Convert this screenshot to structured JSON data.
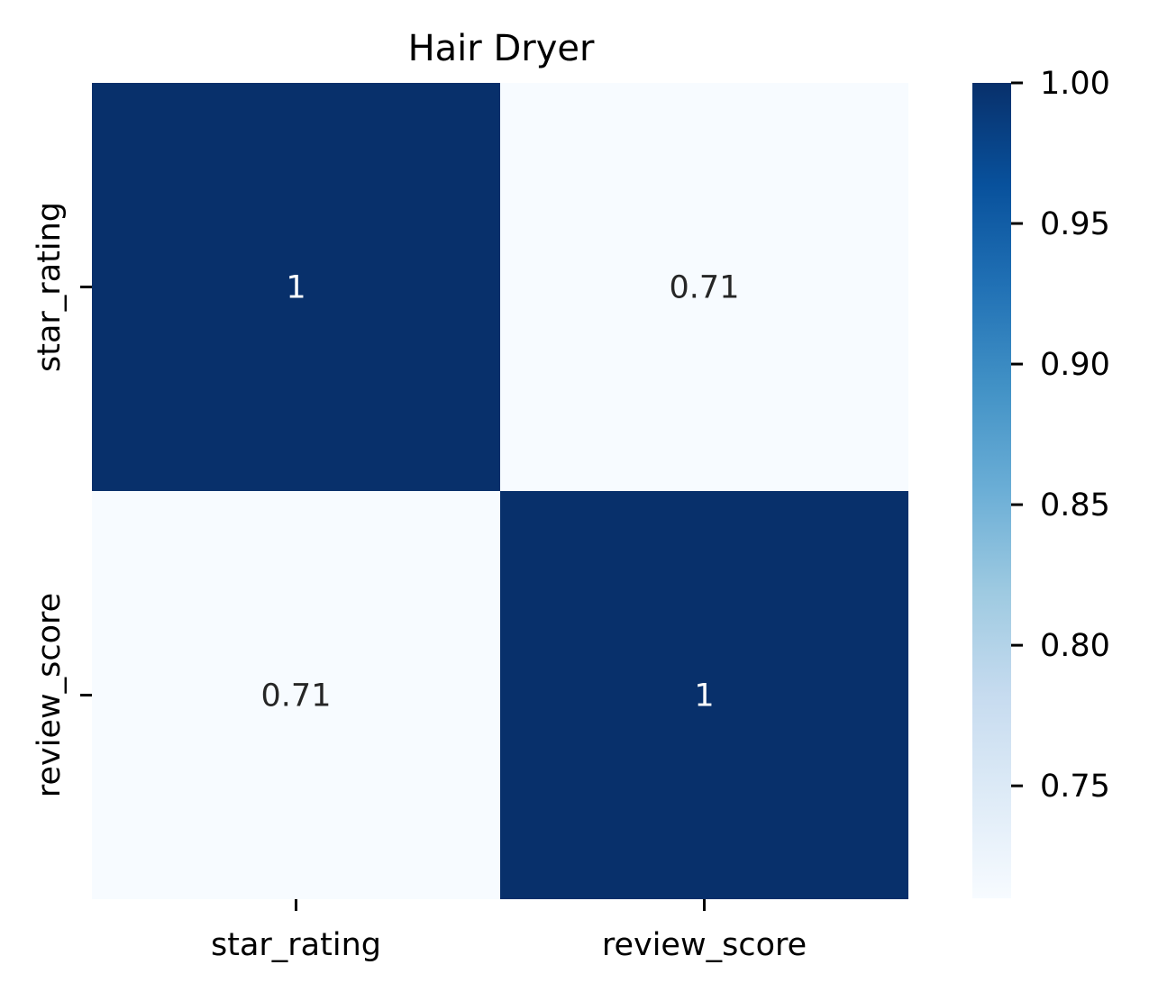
{
  "chart_data": {
    "type": "heatmap",
    "title": "Hair Dryer",
    "x_labels": [
      "star_rating",
      "review_score"
    ],
    "y_labels": [
      "star_rating",
      "review_score"
    ],
    "values": [
      [
        1.0,
        0.71
      ],
      [
        0.71,
        1.0
      ]
    ],
    "annotations": [
      [
        "1",
        "0.71"
      ],
      [
        "0.71",
        "1"
      ]
    ],
    "colormap": "Blues",
    "colorbar": {
      "min": 0.71,
      "max": 1.0,
      "ticks": [
        0.75,
        0.8,
        0.85,
        0.9,
        0.95,
        1.0
      ],
      "tick_labels": [
        "0.75",
        "0.80",
        "0.85",
        "0.90",
        "0.95",
        "1.00"
      ]
    },
    "colors": {
      "low": "#f7fbff",
      "high": "#08306b",
      "annot_on_dark": "#ffffff",
      "annot_on_light": "#262626"
    }
  }
}
